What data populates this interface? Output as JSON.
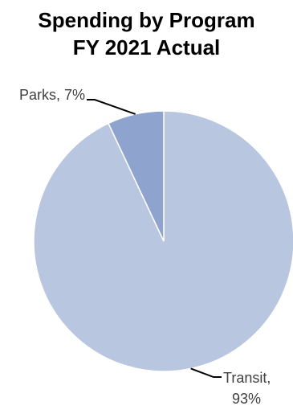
{
  "chart_data": {
    "type": "pie",
    "title": "Spending by Program",
    "subtitle": "FY 2021 Actual",
    "categories": [
      "Transit",
      "Parks"
    ],
    "values": [
      93,
      7
    ],
    "unit": "%",
    "data_labels": [
      {
        "category": "Transit",
        "lines": [
          "Transit,",
          "93%"
        ]
      },
      {
        "category": "Parks",
        "lines": [
          "Parks, 7%"
        ]
      }
    ],
    "colors": {
      "Transit": "#b9c6df",
      "Parks": "#8ea4cf",
      "slice_border": "#ffffff",
      "leader_line": "#000000",
      "label_text": "#404040"
    },
    "legend": "none"
  }
}
